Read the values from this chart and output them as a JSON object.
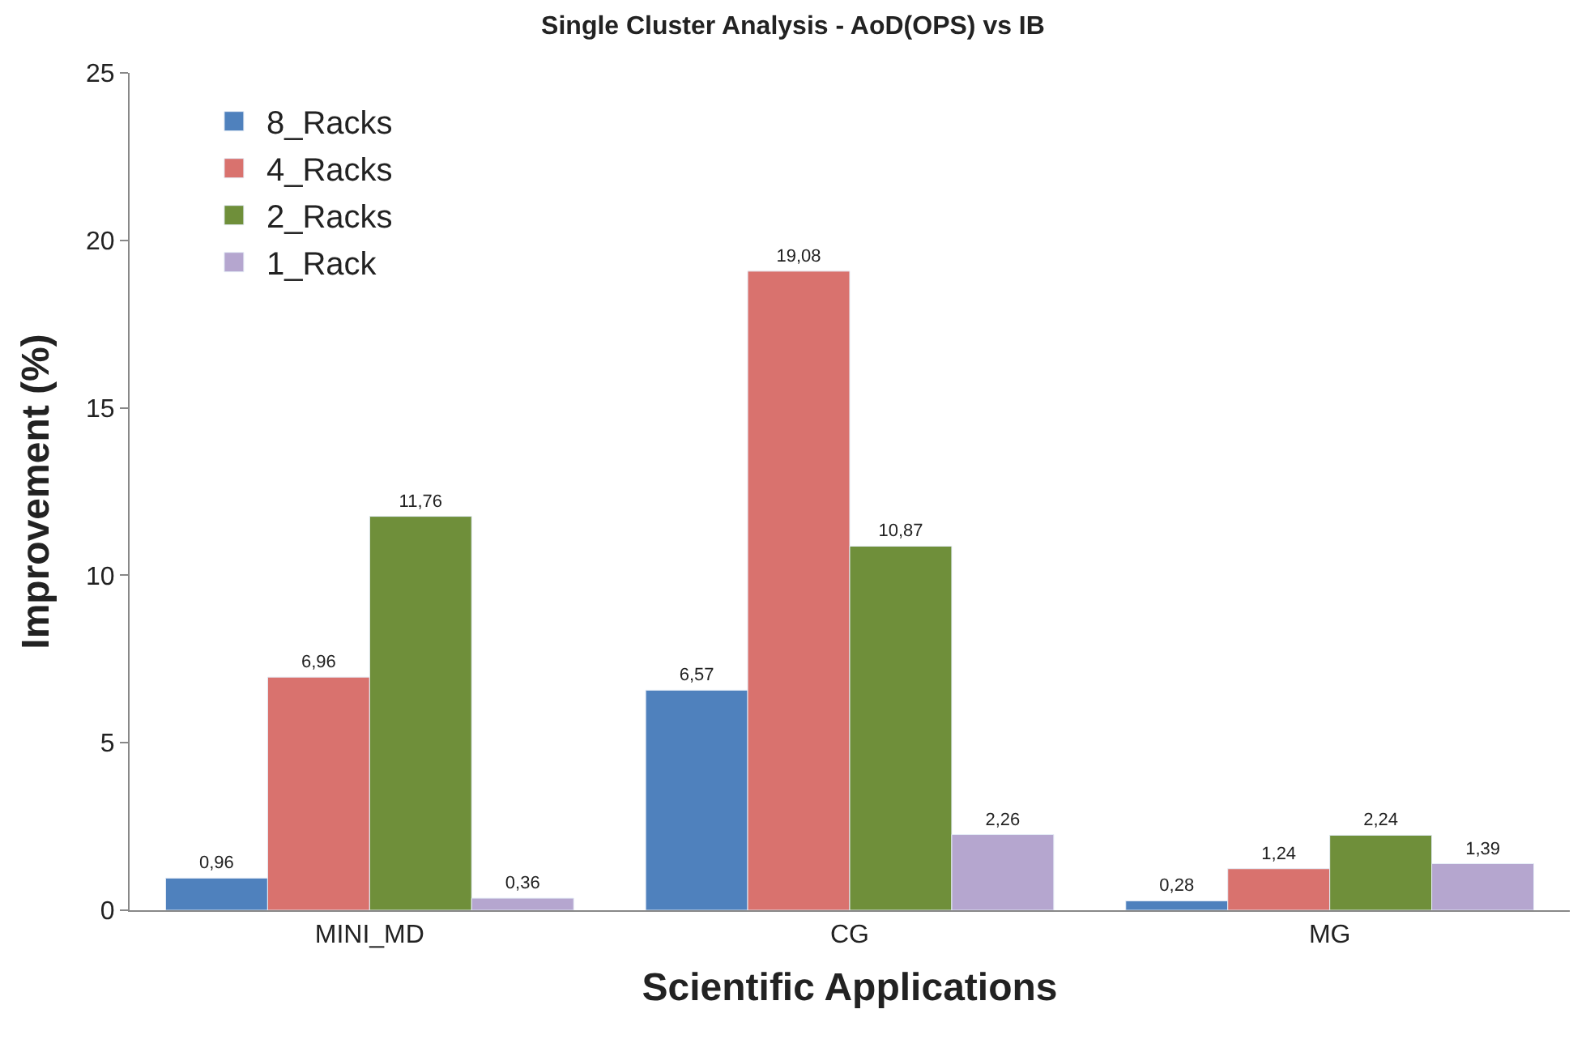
{
  "chart_data": {
    "type": "bar",
    "title": "Single Cluster Analysis - AoD(OPS) vs IB",
    "xlabel": "Scientific Applications",
    "ylabel": "Improvement (%)",
    "categories": [
      "MINI_MD",
      "CG",
      "MG"
    ],
    "series": [
      {
        "name": "8_Racks",
        "color": "#4f81bd",
        "values": [
          0.96,
          6.57,
          0.28
        ],
        "value_labels": [
          "0,96",
          "6,57",
          "0,28"
        ]
      },
      {
        "name": "4_Racks",
        "color": "#d9726e",
        "values": [
          6.96,
          19.08,
          1.24
        ],
        "value_labels": [
          "6,96",
          "19,08",
          "1,24"
        ]
      },
      {
        "name": "2_Racks",
        "color": "#6f8f3a",
        "values": [
          11.76,
          10.87,
          2.24
        ],
        "value_labels": [
          "11,76",
          "10,87",
          "2,24"
        ]
      },
      {
        "name": "1_Rack",
        "color": "#b5a6cf",
        "values": [
          0.36,
          2.26,
          1.39
        ],
        "value_labels": [
          "0,36",
          "2,26",
          "1,39"
        ]
      }
    ],
    "ylim": [
      0,
      25
    ],
    "yticks": [
      0,
      5,
      10,
      15,
      20,
      25
    ],
    "grid": false,
    "legend": "top left"
  }
}
